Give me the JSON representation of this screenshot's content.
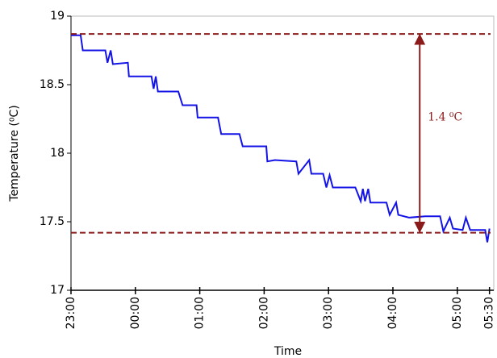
{
  "chart_data": {
    "type": "line",
    "x_label": "Time",
    "y_label": "Temperature (⁰C)",
    "x": [
      0,
      9,
      11,
      32,
      34,
      37,
      39,
      53,
      54,
      75,
      77,
      79,
      81,
      100,
      104,
      117,
      118,
      137,
      140,
      157,
      160,
      182,
      183,
      190,
      210,
      212,
      222,
      224,
      235,
      238,
      241,
      244,
      265,
      270,
      272,
      274,
      277,
      279,
      294,
      297,
      303,
      305,
      315,
      330,
      344,
      347,
      353,
      356,
      365,
      368,
      372,
      386,
      388,
      390
    ],
    "series": [
      {
        "color": "#1414e6",
        "values": [
          18.86,
          18.86,
          18.75,
          18.75,
          18.66,
          18.75,
          18.65,
          18.66,
          18.56,
          18.56,
          18.47,
          18.56,
          18.45,
          18.45,
          18.35,
          18.35,
          18.26,
          18.26,
          18.14,
          18.14,
          18.05,
          18.05,
          17.94,
          17.95,
          17.94,
          17.85,
          17.95,
          17.85,
          17.85,
          17.75,
          17.84,
          17.75,
          17.75,
          17.65,
          17.74,
          17.65,
          17.74,
          17.64,
          17.64,
          17.55,
          17.64,
          17.55,
          17.53,
          17.54,
          17.54,
          17.43,
          17.53,
          17.45,
          17.44,
          17.53,
          17.44,
          17.44,
          17.35,
          17.45
        ]
      }
    ],
    "xlim": [
      0,
      394
    ],
    "xticks": [
      {
        "value": 0,
        "label": "23:00"
      },
      {
        "value": 60,
        "label": "00:00"
      },
      {
        "value": 120,
        "label": "01:00"
      },
      {
        "value": 180,
        "label": "02:00"
      },
      {
        "value": 240,
        "label": "03:00"
      },
      {
        "value": 300,
        "label": "04:00"
      },
      {
        "value": 360,
        "label": "05:00"
      },
      {
        "value": 390,
        "label": "05:30"
      }
    ],
    "ylim": [
      17,
      19
    ],
    "yticks": [
      17,
      17.5,
      18,
      18.5,
      19
    ],
    "reference_lines": {
      "color": "#8b1a1a",
      "values": [
        18.87,
        17.42
      ]
    },
    "annotation": {
      "text": "1.4 ⁰C",
      "x": 325
    }
  }
}
